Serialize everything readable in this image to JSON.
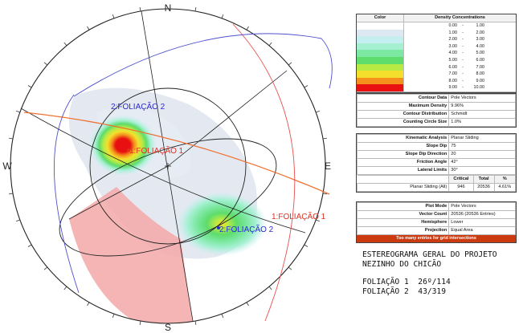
{
  "stereonet": {
    "compass": {
      "north": "N",
      "south": "S",
      "east": "E",
      "west": "W"
    },
    "labels": {
      "f1_pole": "1:FOLIAÇÃO 1",
      "f2_pole": "2:FOLIAÇÃO 2",
      "f1_plane": "1:FOLIAÇÃO 1",
      "f2_plane": "2:FOLIAÇÃO 2"
    },
    "colors": {
      "f1": "#e03020",
      "f2": "#2a2ad0",
      "plane_orange": "#f07030",
      "plane_red": "#e85050",
      "plane_blue": "#5050d0"
    }
  },
  "panel": {
    "legend": {
      "color_header": "Color",
      "density_header": "Density Concentrations",
      "ranges": [
        {
          "from": "0.00",
          "to": "1.00",
          "color": "#ffffff"
        },
        {
          "from": "1.00",
          "to": "2.00",
          "color": "#dde8f2"
        },
        {
          "from": "2.00",
          "to": "3.00",
          "color": "#c4eef0"
        },
        {
          "from": "3.00",
          "to": "4.00",
          "color": "#a6f0d2"
        },
        {
          "from": "4.00",
          "to": "5.00",
          "color": "#7ce8a2"
        },
        {
          "from": "5.00",
          "to": "6.00",
          "color": "#5edc6c"
        },
        {
          "from": "6.00",
          "to": "7.00",
          "color": "#b8ea44"
        },
        {
          "from": "7.00",
          "to": "8.00",
          "color": "#f4e02c"
        },
        {
          "from": "8.00",
          "to": "9.00",
          "color": "#f4901c"
        },
        {
          "from": "9.00",
          "to": "10.00",
          "color": "#e81010"
        }
      ]
    },
    "contour": [
      {
        "k": "Contour Data",
        "v": "Pole Vectors"
      },
      {
        "k": "Maximum Density",
        "v": "9.96%"
      },
      {
        "k": "Contour Distribution",
        "v": "Schmidt"
      },
      {
        "k": "Counting Circle Size",
        "v": "1.0%"
      }
    ],
    "kinematic": [
      {
        "k": "Kinematic Analysis",
        "v": "Planar Sliding"
      },
      {
        "k": "Slope Dip",
        "v": "75"
      },
      {
        "k": "Slope Dip Direction",
        "v": "20"
      },
      {
        "k": "Friction Angle",
        "v": "42°"
      },
      {
        "k": "Lateral Limits",
        "v": "30°"
      }
    ],
    "kin_table": {
      "headers": [
        "Critical",
        "Total",
        "%"
      ],
      "row": {
        "name": "Planar Sliding (All)",
        "critical": "946",
        "total": "20536",
        "pct": "4.61%"
      }
    },
    "plot": [
      {
        "k": "Plot Mode",
        "v": "Pole Vectors"
      },
      {
        "k": "Vector Count",
        "v": "20536 (20536 Entries)"
      },
      {
        "k": "Hemisphere",
        "v": "Lower"
      },
      {
        "k": "Projection",
        "v": "Equal Area"
      }
    ],
    "warning": "Too many entries for grid intersections"
  },
  "caption": {
    "line1": "ESTEREOGRAMA GERAL DO PROJETO",
    "line2": "NEZINHO DO CHICÃO",
    "line3": "FOLIAÇÃO 1  26º/114",
    "line4": "FOLIAÇÃO 2  43/319"
  }
}
